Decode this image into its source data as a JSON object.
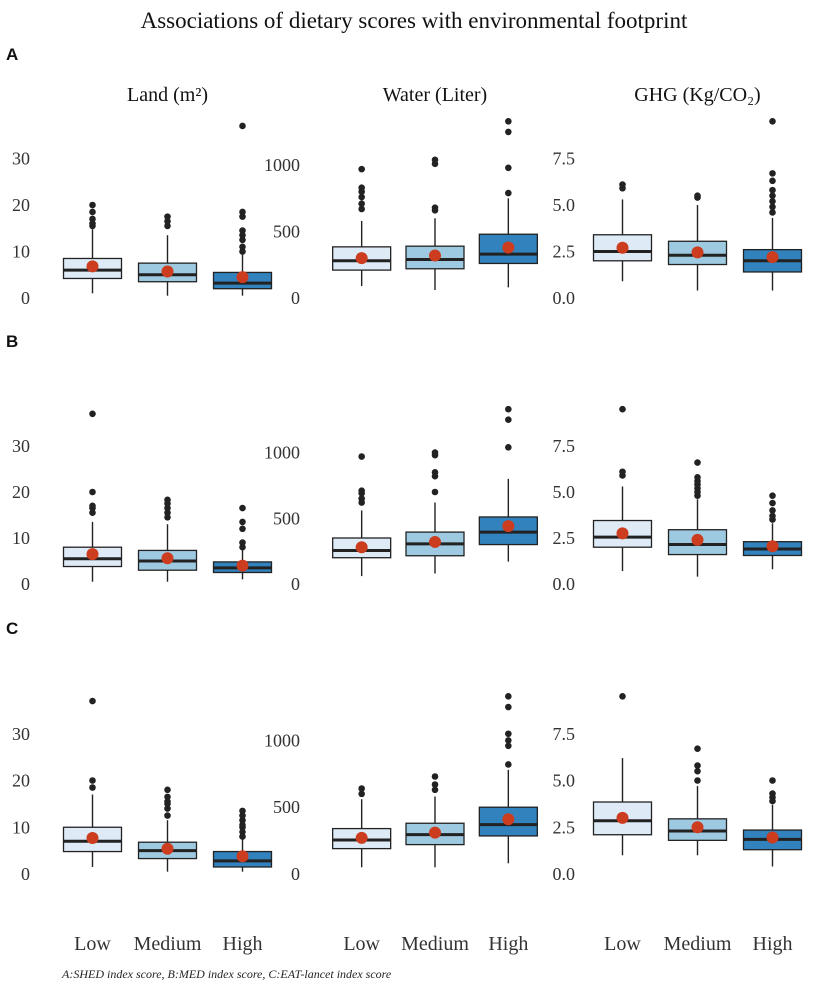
{
  "title": "Associations of dietary scores with environmental footprint",
  "caption": "A:SHED index score, B:MED index score, C:EAT-lancet index score",
  "colors": {
    "Low": "#deebf7",
    "Medium": "#9ecae1",
    "High": "#3182bd",
    "mean": "#cc3c1f",
    "outlier": "#222222"
  },
  "chart_data": {
    "type": "boxplot",
    "categories": [
      "Low",
      "Medium",
      "High"
    ],
    "rows": [
      "A",
      "B",
      "C"
    ],
    "columns": [
      {
        "key": "land",
        "title": "Land (m²)",
        "ylim": [
          0,
          40
        ],
        "ticks": [
          0,
          10,
          20,
          30
        ],
        "tick_labels": [
          "0",
          "10",
          "20",
          "30"
        ]
      },
      {
        "key": "water",
        "title": "Water (Liter)",
        "ylim": [
          0,
          1400
        ],
        "ticks": [
          0,
          500,
          1000
        ],
        "tick_labels": [
          "0",
          "500",
          "1000"
        ]
      },
      {
        "key": "ghg",
        "title": "GHG (Kg/CO₂)",
        "ylim": [
          0,
          10
        ],
        "ticks": [
          0,
          2.5,
          5,
          7.5
        ],
        "tick_labels": [
          "0.0",
          "2.5",
          "5.0",
          "7.5"
        ]
      }
    ],
    "panels": [
      {
        "row": "A",
        "col": "land",
        "boxes": [
          {
            "cat": "Low",
            "whislo": 1,
            "q1": 4.2,
            "med": 6,
            "q3": 8.5,
            "whishi": 14.8,
            "mean": 6.8,
            "outliers": [
              15.5,
              16,
              17,
              18.5,
              20
            ]
          },
          {
            "cat": "Medium",
            "whislo": 0.5,
            "q1": 3.5,
            "med": 5,
            "q3": 7.5,
            "whishi": 13.5,
            "mean": 5.7,
            "outliers": [
              15.5,
              16.5,
              17.5
            ]
          },
          {
            "cat": "High",
            "whislo": 0.5,
            "q1": 2,
            "med": 3.2,
            "q3": 5.5,
            "whishi": 9.5,
            "mean": 4.5,
            "outliers": [
              10,
              11,
              12.5,
              13.5,
              14.5,
              17.5,
              18.5,
              37
            ]
          }
        ]
      },
      {
        "row": "A",
        "col": "water",
        "boxes": [
          {
            "cat": "Low",
            "whislo": 90,
            "q1": 210,
            "med": 280,
            "q3": 385,
            "whishi": 580,
            "mean": 300,
            "outliers": [
              670,
              710,
              760,
              800,
              830,
              970
            ]
          },
          {
            "cat": "Medium",
            "whislo": 60,
            "q1": 220,
            "med": 290,
            "q3": 390,
            "whishi": 600,
            "mean": 320,
            "outliers": [
              660,
              680,
              1010,
              1040
            ]
          },
          {
            "cat": "High",
            "whislo": 80,
            "q1": 260,
            "med": 330,
            "q3": 480,
            "whishi": 750,
            "mean": 380,
            "outliers": [
              790,
              980,
              1250,
              1330
            ]
          }
        ]
      },
      {
        "row": "A",
        "col": "ghg",
        "boxes": [
          {
            "cat": "Low",
            "whislo": 0.9,
            "q1": 2,
            "med": 2.5,
            "q3": 3.4,
            "whishi": 5.3,
            "mean": 2.7,
            "outliers": [
              5.9,
              6.1
            ]
          },
          {
            "cat": "Medium",
            "whislo": 0.4,
            "q1": 1.8,
            "med": 2.3,
            "q3": 3.05,
            "whishi": 5,
            "mean": 2.45,
            "outliers": [
              5.4,
              5.5
            ]
          },
          {
            "cat": "High",
            "whislo": 0.4,
            "q1": 1.4,
            "med": 2,
            "q3": 2.6,
            "whishi": 4.3,
            "mean": 2.2,
            "outliers": [
              4.6,
              4.9,
              5.2,
              5.5,
              5.8,
              6.3,
              6.7,
              9.5
            ]
          }
        ]
      },
      {
        "row": "B",
        "col": "land",
        "boxes": [
          {
            "cat": "Low",
            "whislo": 0.5,
            "q1": 3.8,
            "med": 5.5,
            "q3": 8,
            "whishi": 13.5,
            "mean": 6.5,
            "outliers": [
              15.5,
              16.5,
              17,
              20,
              37
            ]
          },
          {
            "cat": "Medium",
            "whislo": 0.5,
            "q1": 3,
            "med": 5,
            "q3": 7.3,
            "whishi": 13,
            "mean": 5.6,
            "outliers": [
              14.5,
              15.5,
              16.5,
              17.5,
              18.3
            ]
          },
          {
            "cat": "High",
            "whislo": 1,
            "q1": 2.5,
            "med": 3.5,
            "q3": 4.8,
            "whishi": 7.5,
            "mean": 4,
            "outliers": [
              8,
              9,
              12,
              13.5,
              16.5
            ]
          }
        ]
      },
      {
        "row": "B",
        "col": "water",
        "boxes": [
          {
            "cat": "Low",
            "whislo": 60,
            "q1": 200,
            "med": 255,
            "q3": 350,
            "whishi": 560,
            "mean": 280,
            "outliers": [
              620,
              650,
              690,
              710,
              970
            ]
          },
          {
            "cat": "Medium",
            "whislo": 80,
            "q1": 215,
            "med": 305,
            "q3": 395,
            "whishi": 620,
            "mean": 320,
            "outliers": [
              700,
              820,
              850,
              980,
              1000
            ]
          },
          {
            "cat": "High",
            "whislo": 170,
            "q1": 300,
            "med": 395,
            "q3": 510,
            "whishi": 800,
            "mean": 440,
            "outliers": [
              1040,
              1250,
              1330
            ]
          }
        ]
      },
      {
        "row": "B",
        "col": "ghg",
        "boxes": [
          {
            "cat": "Low",
            "whislo": 0.7,
            "q1": 2,
            "med": 2.55,
            "q3": 3.45,
            "whishi": 5.3,
            "mean": 2.75,
            "outliers": [
              5.9,
              6.1,
              9.5
            ]
          },
          {
            "cat": "Medium",
            "whislo": 0.4,
            "q1": 1.6,
            "med": 2.15,
            "q3": 2.95,
            "whishi": 4.6,
            "mean": 2.4,
            "outliers": [
              4.8,
              5,
              5.2,
              5.4,
              5.6,
              5.8,
              6.6
            ]
          },
          {
            "cat": "High",
            "whislo": 0.8,
            "q1": 1.55,
            "med": 1.9,
            "q3": 2.3,
            "whishi": 3.3,
            "mean": 2.05,
            "outliers": [
              3.5,
              3.7,
              4,
              4.4,
              4.8
            ]
          }
        ]
      },
      {
        "row": "C",
        "col": "land",
        "boxes": [
          {
            "cat": "Low",
            "whislo": 1.5,
            "q1": 4.8,
            "med": 7,
            "q3": 10,
            "whishi": 17,
            "mean": 7.7,
            "outliers": [
              18.5,
              20,
              37
            ]
          },
          {
            "cat": "Medium",
            "whislo": 0.5,
            "q1": 3.3,
            "med": 5,
            "q3": 6.8,
            "whishi": 11.5,
            "mean": 5.4,
            "outliers": [
              12.5,
              14,
              15,
              15.5,
              16.5,
              18
            ]
          },
          {
            "cat": "High",
            "whislo": 0.5,
            "q1": 1.5,
            "med": 2.8,
            "q3": 4.8,
            "whishi": 7.5,
            "mean": 3.8,
            "outliers": [
              8,
              9,
              10,
              10.5,
              11.5,
              12.5,
              13.5
            ]
          }
        ]
      },
      {
        "row": "C",
        "col": "water",
        "boxes": [
          {
            "cat": "Low",
            "whislo": 50,
            "q1": 190,
            "med": 255,
            "q3": 340,
            "whishi": 560,
            "mean": 270,
            "outliers": [
              600,
              640
            ]
          },
          {
            "cat": "Medium",
            "whislo": 50,
            "q1": 220,
            "med": 295,
            "q3": 380,
            "whishi": 580,
            "mean": 310,
            "outliers": [
              630,
              670,
              730
            ]
          },
          {
            "cat": "High",
            "whislo": 80,
            "q1": 285,
            "med": 370,
            "q3": 500,
            "whishi": 780,
            "mean": 410,
            "outliers": [
              820,
              960,
              1000,
              1050,
              1250,
              1330
            ]
          }
        ]
      },
      {
        "row": "C",
        "col": "ghg",
        "boxes": [
          {
            "cat": "Low",
            "whislo": 1,
            "q1": 2.1,
            "med": 2.85,
            "q3": 3.85,
            "whishi": 6.2,
            "mean": 3,
            "outliers": [
              9.5
            ]
          },
          {
            "cat": "Medium",
            "whislo": 1,
            "q1": 1.8,
            "med": 2.3,
            "q3": 2.95,
            "whishi": 4.7,
            "mean": 2.5,
            "outliers": [
              5,
              5.5,
              5.8,
              6.7
            ]
          },
          {
            "cat": "High",
            "whislo": 0.4,
            "q1": 1.3,
            "med": 1.85,
            "q3": 2.35,
            "whishi": 3.7,
            "mean": 1.95,
            "outliers": [
              3.9,
              4.1,
              4.3,
              5
            ]
          }
        ]
      }
    ]
  }
}
